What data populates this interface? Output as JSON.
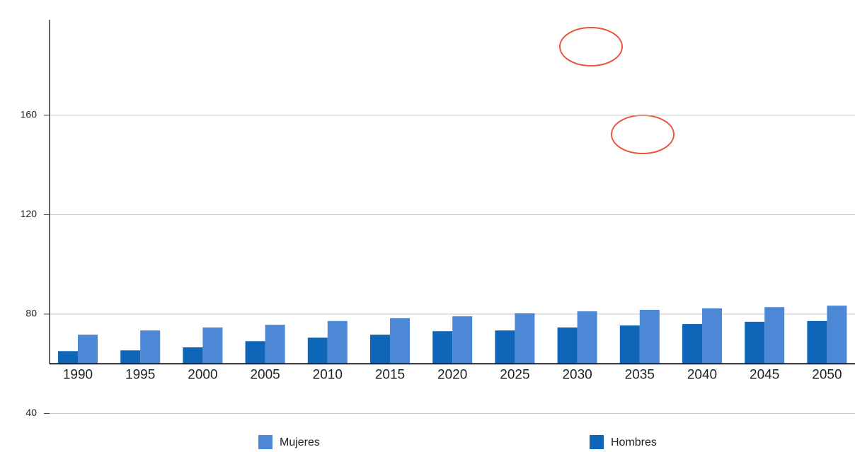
{
  "chart_data": {
    "type": "bar",
    "categories": [
      "1990",
      "1995",
      "2000",
      "2005",
      "2010",
      "2015",
      "2020",
      "2025",
      "2030",
      "2035",
      "2040",
      "2045",
      "2050"
    ],
    "series": [
      {
        "name": "Mujeres",
        "color": "#4d88d6",
        "values": [
          71.7,
          73.4,
          74.6,
          75.7,
          77.2,
          78.3,
          79.1,
          80.3,
          81.1,
          81.7,
          82.3,
          82.8,
          83.4
        ]
      },
      {
        "name": "Hombres",
        "color": "#0f66b8",
        "values": [
          65.1,
          65.4,
          66.6,
          69.1,
          70.5,
          71.7,
          73.1,
          73.4,
          74.6,
          75.4,
          76.0,
          76.9,
          77.2
        ]
      }
    ],
    "ylim": [
      40,
      200
    ],
    "yticks": [
      40,
      80,
      120,
      160
    ],
    "x_axis_at": 60,
    "grid": true
  }
}
